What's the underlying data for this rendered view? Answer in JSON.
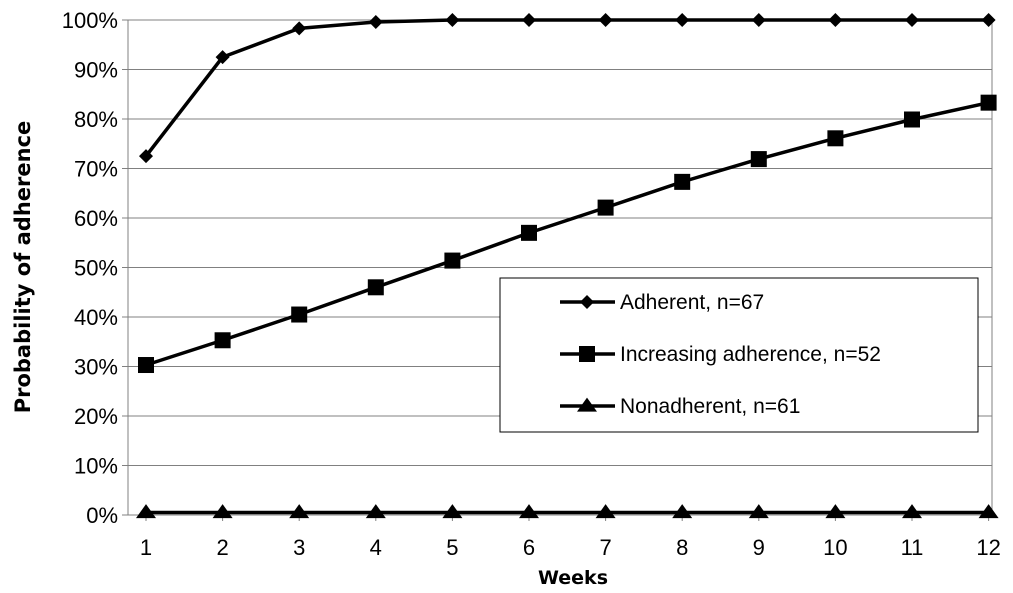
{
  "chart_data": {
    "type": "line",
    "title": "",
    "xlabel": "Weeks",
    "ylabel": "Probability of adherence",
    "x": [
      1,
      2,
      3,
      4,
      5,
      6,
      7,
      8,
      9,
      10,
      11,
      12
    ],
    "x_tick_labels": [
      "1",
      "2",
      "3",
      "4",
      "5",
      "6",
      "7",
      "8",
      "9",
      "10",
      "11",
      "12"
    ],
    "ylim": [
      0,
      100
    ],
    "y_ticks": [
      0,
      10,
      20,
      30,
      40,
      50,
      60,
      70,
      80,
      90,
      100
    ],
    "y_tick_labels": [
      "0%",
      "10%",
      "20%",
      "30%",
      "40%",
      "50%",
      "60%",
      "70%",
      "80%",
      "90%",
      "100%"
    ],
    "grid": "horizontal",
    "legend_position": "right, inside plot",
    "series": [
      {
        "name": "Adherent, n=67",
        "marker": "diamond",
        "color": "#000000",
        "values": [
          72.5,
          92.5,
          98.3,
          99.6,
          100,
          100,
          100,
          100,
          100,
          100,
          100,
          100
        ]
      },
      {
        "name": "Increasing adherence, n=52",
        "marker": "square",
        "color": "#000000",
        "values": [
          30.3,
          35.3,
          40.5,
          46.0,
          51.4,
          57.0,
          62.1,
          67.3,
          71.9,
          76.1,
          79.9,
          83.3
        ]
      },
      {
        "name": "Nonadherent, n=61",
        "marker": "triangle",
        "color": "#000000",
        "values": [
          0.5,
          0.5,
          0.5,
          0.5,
          0.5,
          0.5,
          0.5,
          0.5,
          0.5,
          0.5,
          0.5,
          0.5
        ]
      }
    ]
  }
}
